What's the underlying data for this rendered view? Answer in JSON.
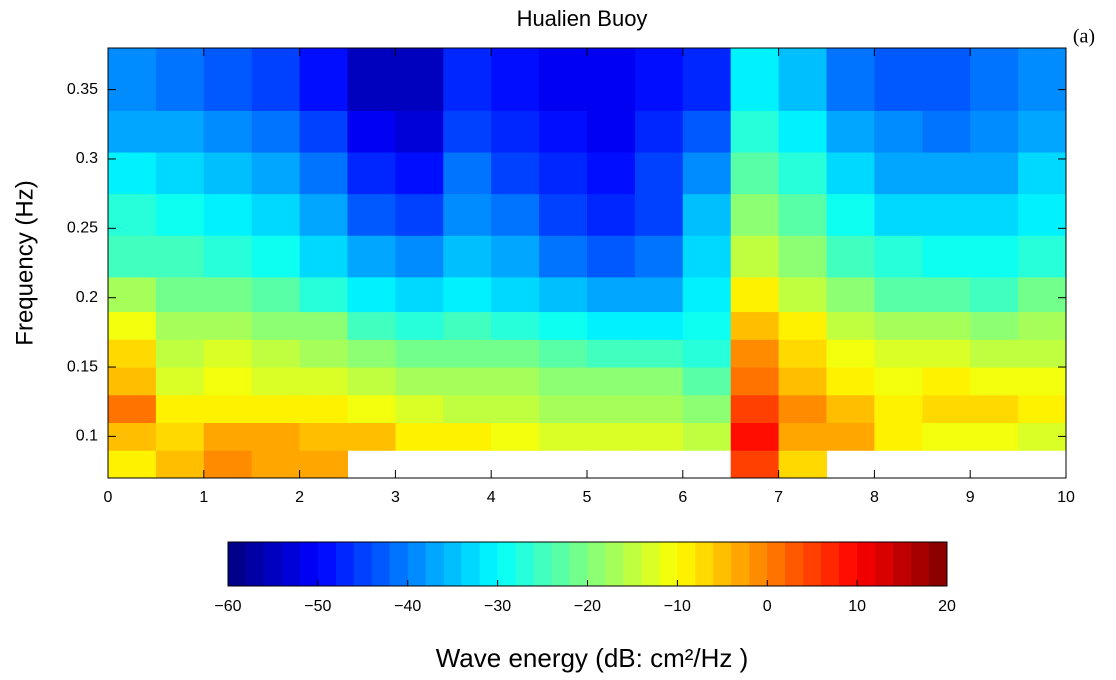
{
  "chart_data": {
    "type": "heatmap",
    "title": "Hualien Buoy",
    "annotation": "(a)",
    "y_label": "Frequency (Hz)",
    "colorbar_label": "Wave energy (dB: cm²/Hz )",
    "colormap": "jet",
    "level_step": 2,
    "x": [
      0.25,
      0.75,
      1.25,
      1.75,
      2.25,
      2.75,
      3.25,
      3.75,
      4.25,
      4.75,
      5.25,
      5.75,
      6.25,
      6.75,
      7.25,
      7.75,
      8.25,
      8.75,
      9.25,
      9.75
    ],
    "y": [
      0.08,
      0.1,
      0.12,
      0.14,
      0.16,
      0.18,
      0.2,
      0.23,
      0.26,
      0.29,
      0.32,
      0.35
    ],
    "z": [
      [
        -10,
        -5,
        -2,
        -3,
        -4,
        null,
        null,
        null,
        null,
        null,
        null,
        null,
        null,
        5,
        -8,
        null,
        null,
        null,
        null,
        null
      ],
      [
        -5,
        -8,
        -3,
        -4,
        -5,
        -6,
        -9,
        -10,
        -12,
        -13,
        -14,
        -14,
        -15,
        8,
        -3,
        -4,
        -10,
        -12,
        -12,
        -13
      ],
      [
        0,
        -10,
        -9,
        -10,
        -10,
        -12,
        -14,
        -15,
        -16,
        -17,
        -17,
        -18,
        -20,
        4,
        -2,
        -6,
        -9,
        -7,
        -8,
        -10
      ],
      [
        -5,
        -13,
        -12,
        -13,
        -14,
        -16,
        -17,
        -18,
        -18,
        -19,
        -20,
        -20,
        -24,
        0,
        -6,
        -10,
        -12,
        -10,
        -11,
        -12
      ],
      [
        -8,
        -15,
        -14,
        -16,
        -17,
        -20,
        -22,
        -22,
        -22,
        -24,
        -25,
        -26,
        -28,
        -2,
        -8,
        -12,
        -14,
        -14,
        -15,
        -15
      ],
      [
        -12,
        -18,
        -17,
        -19,
        -20,
        -25,
        -28,
        -26,
        -27,
        -30,
        -32,
        -32,
        -30,
        -5,
        -10,
        -15,
        -18,
        -18,
        -19,
        -18
      ],
      [
        -18,
        -22,
        -22,
        -24,
        -27,
        -32,
        -34,
        -32,
        -33,
        -36,
        -38,
        -38,
        -32,
        -10,
        -15,
        -20,
        -23,
        -24,
        -25,
        -22
      ],
      [
        -25,
        -26,
        -27,
        -29,
        -33,
        -38,
        -40,
        -36,
        -38,
        -42,
        -44,
        -42,
        -34,
        -15,
        -20,
        -25,
        -28,
        -29,
        -30,
        -27
      ],
      [
        -28,
        -30,
        -32,
        -33,
        -38,
        -43,
        -46,
        -40,
        -42,
        -46,
        -48,
        -46,
        -36,
        -20,
        -24,
        -30,
        -33,
        -34,
        -34,
        -31
      ],
      [
        -32,
        -33,
        -36,
        -37,
        -42,
        -48,
        -50,
        -42,
        -46,
        -48,
        -50,
        -46,
        -40,
        -24,
        -28,
        -34,
        -37,
        -38,
        -38,
        -34
      ],
      [
        -38,
        -38,
        -40,
        -42,
        -46,
        -52,
        -54,
        -45,
        -48,
        -50,
        -52,
        -48,
        -44,
        -28,
        -32,
        -38,
        -40,
        -42,
        -40,
        -37
      ],
      [
        -40,
        -42,
        -44,
        -46,
        -50,
        -55,
        -56,
        -48,
        -50,
        -52,
        -52,
        -50,
        -48,
        -32,
        -36,
        -42,
        -44,
        -44,
        -42,
        -40
      ]
    ],
    "xlim": [
      0,
      10
    ],
    "xticks": [
      0,
      1,
      2,
      3,
      4,
      5,
      6,
      7,
      8,
      9,
      10
    ],
    "ylim": [
      0.07,
      0.38
    ],
    "yticks": [
      0.1,
      0.15,
      0.2,
      0.25,
      0.3,
      0.35
    ],
    "clim": [
      -60,
      20
    ],
    "cticks": [
      {
        "value": -60,
        "label": "−60"
      },
      {
        "value": -50,
        "label": "−50"
      },
      {
        "value": -40,
        "label": "−40"
      },
      {
        "value": -30,
        "label": "−30"
      },
      {
        "value": -20,
        "label": "−20"
      },
      {
        "value": -10,
        "label": "−10"
      },
      0,
      10,
      20
    ]
  }
}
